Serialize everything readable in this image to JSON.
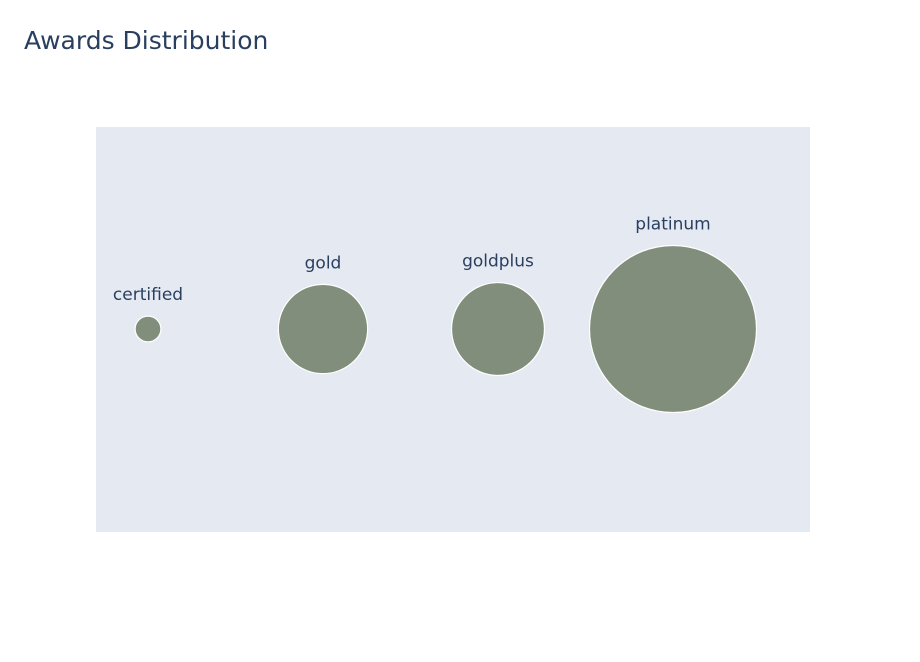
{
  "chart_data": {
    "type": "scatter",
    "title": "Awards Distribution",
    "subtitle": "",
    "xlabel": "",
    "ylabel": "",
    "categories": [
      "certified",
      "gold",
      "goldplus",
      "platinum"
    ],
    "values": [
      1,
      12,
      13,
      42
    ],
    "marker_size_encodes": "value",
    "show_axes": false,
    "grid": false,
    "legend": "none",
    "colors": {
      "marker": "#818e7c",
      "marker_outline": "#ffffff",
      "plot_background": "#e5e9f2",
      "label": "#2a3f5f",
      "title": "#2a3f5f"
    }
  }
}
